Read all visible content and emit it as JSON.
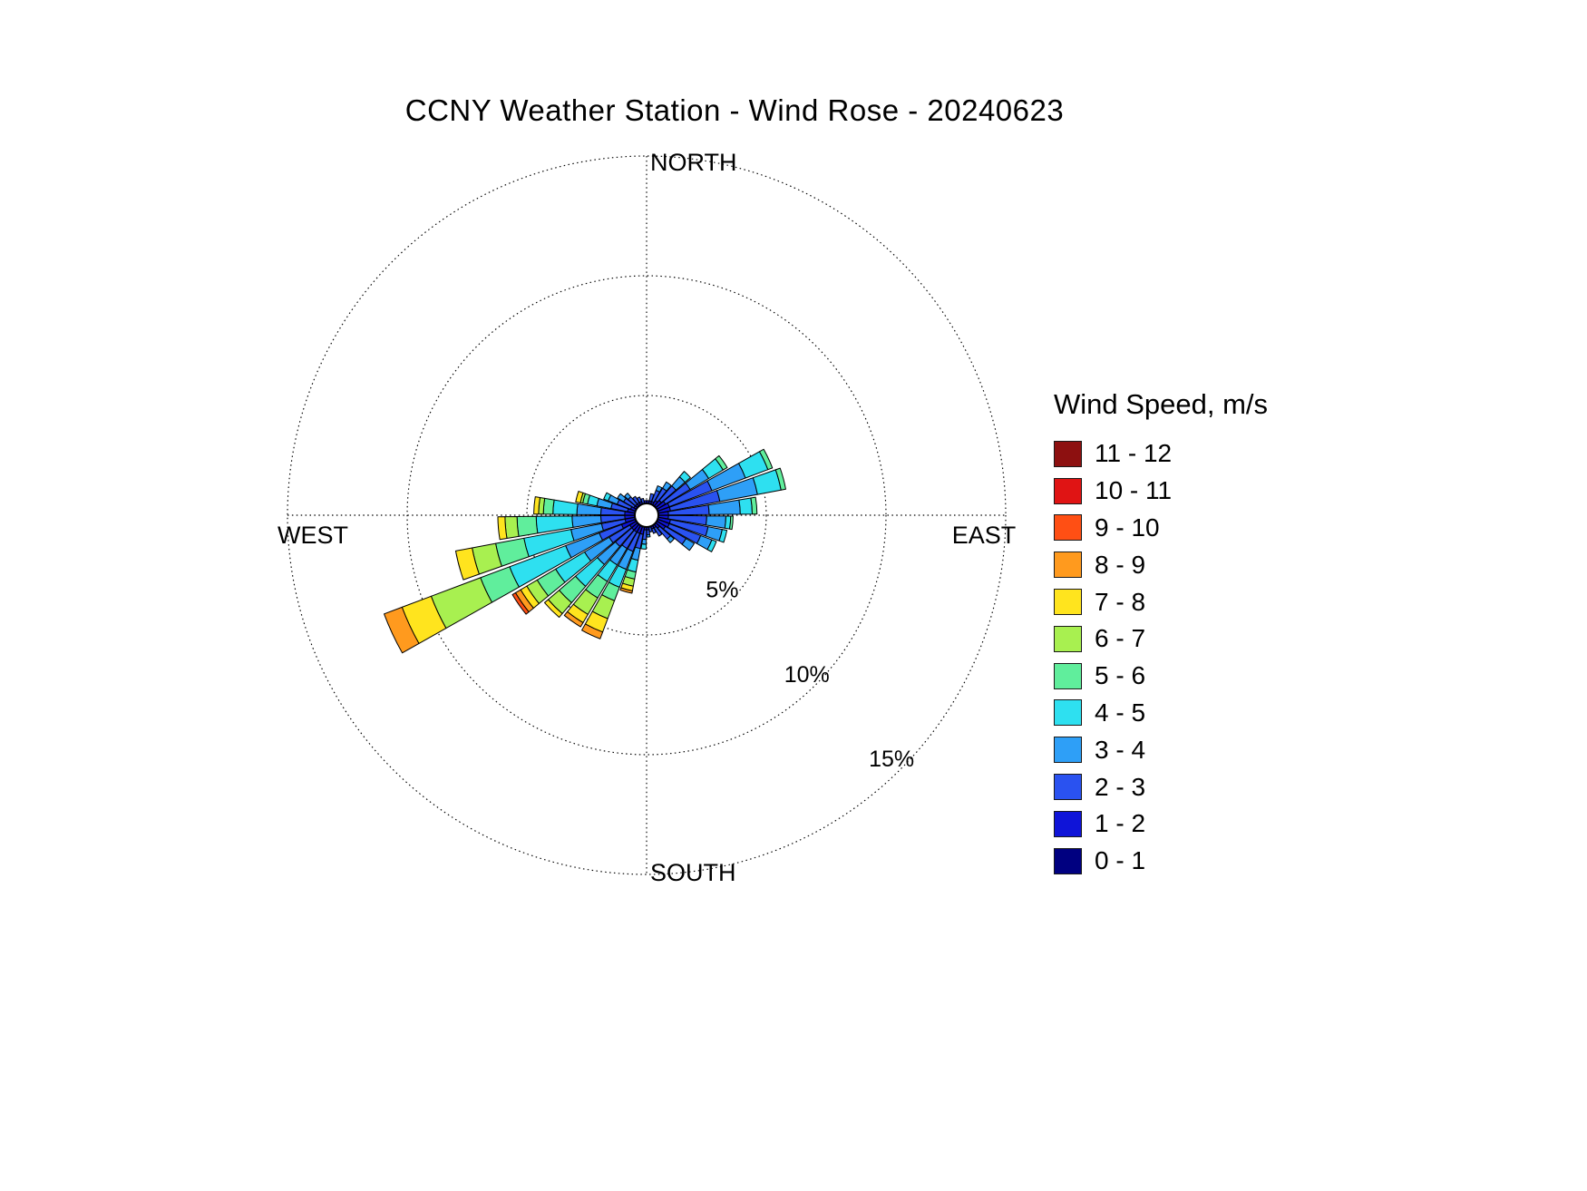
{
  "title": "CCNY Weather Station - Wind Rose - 20240623",
  "legend": {
    "title": "Wind Speed, m/s"
  },
  "chart_data": {
    "type": "windrose",
    "title": "CCNY Weather Station - Wind Rose - 20240623",
    "values_unit": "percent frequency of wind direction",
    "direction_labels": [
      "NORTH",
      "EAST",
      "SOUTH",
      "WEST"
    ],
    "ring_labels": [
      "5%",
      "10%",
      "15%"
    ],
    "rings_pct": [
      5,
      10,
      15
    ],
    "r_axis_max_pct": 15,
    "sector_width_deg": 10,
    "legend_title": "Wind Speed, m/s",
    "speed_bins": [
      {
        "label": "0 - 1",
        "color": "#000080"
      },
      {
        "label": "1 - 2",
        "color": "#0f14d8"
      },
      {
        "label": "2 - 3",
        "color": "#2a52f0"
      },
      {
        "label": "3 - 4",
        "color": "#2e9ff7"
      },
      {
        "label": "4 - 5",
        "color": "#2ee0f0"
      },
      {
        "label": "5 - 6",
        "color": "#60ee9c"
      },
      {
        "label": "6 - 7",
        "color": "#a8f050"
      },
      {
        "label": "7 - 8",
        "color": "#ffe41e"
      },
      {
        "label": "8 - 9",
        "color": "#ff9a1e"
      },
      {
        "label": "9 - 10",
        "color": "#ff4f14"
      },
      {
        "label": "10 - 11",
        "color": "#e01414"
      },
      {
        "label": "11 - 12",
        "color": "#8d1010"
      }
    ],
    "sectors": [
      {
        "dir_deg": 5,
        "freq_pct_by_bin": [
          0.2,
          0.3,
          0,
          0,
          0,
          0,
          0,
          0,
          0,
          0,
          0,
          0
        ]
      },
      {
        "dir_deg": 15,
        "freq_pct_by_bin": [
          0.2,
          0.3,
          0.3,
          0,
          0,
          0,
          0,
          0,
          0,
          0,
          0,
          0
        ]
      },
      {
        "dir_deg": 25,
        "freq_pct_by_bin": [
          0.2,
          0.3,
          0.5,
          0.2,
          0,
          0,
          0,
          0,
          0,
          0,
          0,
          0
        ]
      },
      {
        "dir_deg": 35,
        "freq_pct_by_bin": [
          0.2,
          0.4,
          0.6,
          0.3,
          0,
          0,
          0,
          0,
          0,
          0,
          0,
          0
        ]
      },
      {
        "dir_deg": 45,
        "freq_pct_by_bin": [
          0.3,
          0.4,
          0.8,
          0.5,
          0.3,
          0,
          0,
          0,
          0,
          0,
          0,
          0
        ]
      },
      {
        "dir_deg": 55,
        "freq_pct_by_bin": [
          0.3,
          0.5,
          1.2,
          0.9,
          0.7,
          0.2,
          0,
          0,
          0,
          0,
          0,
          0
        ]
      },
      {
        "dir_deg": 65,
        "freq_pct_by_bin": [
          0.3,
          0.6,
          1.9,
          1.5,
          1.0,
          0.2,
          0,
          0,
          0,
          0,
          0,
          0
        ]
      },
      {
        "dir_deg": 75,
        "freq_pct_by_bin": [
          0.3,
          0.6,
          2.1,
          1.6,
          1.0,
          0.2,
          0,
          0,
          0,
          0,
          0,
          0
        ]
      },
      {
        "dir_deg": 85,
        "freq_pct_by_bin": [
          0.3,
          0.5,
          1.7,
          1.3,
          0.5,
          0.2,
          0,
          0,
          0,
          0,
          0,
          0
        ]
      },
      {
        "dir_deg": 95,
        "freq_pct_by_bin": [
          0.3,
          0.5,
          1.6,
          0.8,
          0.2,
          0.1,
          0,
          0,
          0,
          0,
          0,
          0
        ]
      },
      {
        "dir_deg": 105,
        "freq_pct_by_bin": [
          0.3,
          0.6,
          1.6,
          0.6,
          0.2,
          0,
          0,
          0,
          0,
          0,
          0,
          0
        ]
      },
      {
        "dir_deg": 115,
        "freq_pct_by_bin": [
          0.3,
          0.6,
          1.4,
          0.5,
          0.2,
          0,
          0,
          0,
          0,
          0,
          0,
          0
        ]
      },
      {
        "dir_deg": 125,
        "freq_pct_by_bin": [
          0.3,
          0.5,
          1.0,
          0.4,
          0,
          0,
          0,
          0,
          0,
          0,
          0,
          0
        ]
      },
      {
        "dir_deg": 135,
        "freq_pct_by_bin": [
          0.2,
          0.4,
          0.6,
          0.2,
          0,
          0,
          0,
          0,
          0,
          0,
          0,
          0
        ]
      },
      {
        "dir_deg": 145,
        "freq_pct_by_bin": [
          0.2,
          0.3,
          0.4,
          0,
          0,
          0,
          0,
          0,
          0,
          0,
          0,
          0
        ]
      },
      {
        "dir_deg": 155,
        "freq_pct_by_bin": [
          0.2,
          0.3,
          0.2,
          0,
          0,
          0,
          0,
          0,
          0,
          0,
          0,
          0
        ]
      },
      {
        "dir_deg": 165,
        "freq_pct_by_bin": [
          0.2,
          0.2,
          0.2,
          0,
          0,
          0,
          0,
          0,
          0,
          0,
          0,
          0
        ]
      },
      {
        "dir_deg": 175,
        "freq_pct_by_bin": [
          0.2,
          0.3,
          0.2,
          0.1,
          0,
          0,
          0,
          0,
          0,
          0,
          0,
          0
        ]
      },
      {
        "dir_deg": 185,
        "freq_pct_by_bin": [
          0.2,
          0.3,
          0.4,
          0.2,
          0.2,
          0,
          0,
          0,
          0,
          0,
          0,
          0
        ]
      },
      {
        "dir_deg": 195,
        "freq_pct_by_bin": [
          0.3,
          0.4,
          0.6,
          0.5,
          0.5,
          0.3,
          0.3,
          0.2,
          0.1,
          0,
          0,
          0
        ]
      },
      {
        "dir_deg": 205,
        "freq_pct_by_bin": [
          0.3,
          0.4,
          0.8,
          0.8,
          0.8,
          0.6,
          0.8,
          0.6,
          0.3,
          0,
          0,
          0
        ]
      },
      {
        "dir_deg": 215,
        "freq_pct_by_bin": [
          0.3,
          0.4,
          0.8,
          0.8,
          0.8,
          0.8,
          0.8,
          0.4,
          0.2,
          0,
          0,
          0
        ]
      },
      {
        "dir_deg": 225,
        "freq_pct_by_bin": [
          0.3,
          0.4,
          0.9,
          1.0,
          1.2,
          0.9,
          0.6,
          0.2,
          0,
          0,
          0,
          0
        ]
      },
      {
        "dir_deg": 235,
        "freq_pct_by_bin": [
          0.3,
          0.4,
          1.0,
          1.2,
          1.4,
          0.9,
          0.5,
          0.3,
          0.25,
          0.15,
          0,
          0
        ]
      },
      {
        "dir_deg": 245,
        "freq_pct_by_bin": [
          0.4,
          0.6,
          1.0,
          1.5,
          2.5,
          1.3,
          2.2,
          1.3,
          0.8,
          0,
          0,
          0
        ]
      },
      {
        "dir_deg": 255,
        "freq_pct_by_bin": [
          0.3,
          0.5,
          1.0,
          1.3,
          2.0,
          1.2,
          1.0,
          0.7,
          0,
          0,
          0,
          0
        ]
      },
      {
        "dir_deg": 265,
        "freq_pct_by_bin": [
          0.3,
          0.5,
          1.0,
          1.2,
          1.5,
          0.8,
          0.5,
          0.3,
          0,
          0,
          0,
          0
        ]
      },
      {
        "dir_deg": 275,
        "freq_pct_by_bin": [
          0.3,
          0.5,
          1.0,
          1.0,
          1.0,
          0.4,
          0.2,
          0.2,
          0,
          0,
          0,
          0
        ]
      },
      {
        "dir_deg": 285,
        "freq_pct_by_bin": [
          0.3,
          0.4,
          0.7,
          0.6,
          0.4,
          0.2,
          0.1,
          0.2,
          0,
          0,
          0,
          0
        ]
      },
      {
        "dir_deg": 295,
        "freq_pct_by_bin": [
          0.2,
          0.4,
          0.6,
          0.4,
          0.2,
          0,
          0,
          0,
          0,
          0,
          0,
          0
        ]
      },
      {
        "dir_deg": 305,
        "freq_pct_by_bin": [
          0.2,
          0.3,
          0.5,
          0.3,
          0,
          0,
          0,
          0,
          0,
          0,
          0,
          0
        ]
      },
      {
        "dir_deg": 315,
        "freq_pct_by_bin": [
          0.2,
          0.3,
          0.4,
          0.2,
          0,
          0,
          0,
          0,
          0,
          0,
          0,
          0
        ]
      },
      {
        "dir_deg": 325,
        "freq_pct_by_bin": [
          0.2,
          0.3,
          0.3,
          0,
          0,
          0,
          0,
          0,
          0,
          0,
          0,
          0
        ]
      },
      {
        "dir_deg": 335,
        "freq_pct_by_bin": [
          0.2,
          0.3,
          0.2,
          0,
          0,
          0,
          0,
          0,
          0,
          0,
          0,
          0
        ]
      },
      {
        "dir_deg": 345,
        "freq_pct_by_bin": [
          0.2,
          0.2,
          0.2,
          0,
          0,
          0,
          0,
          0,
          0,
          0,
          0,
          0
        ]
      },
      {
        "dir_deg": 355,
        "freq_pct_by_bin": [
          0.2,
          0.3,
          0,
          0,
          0,
          0,
          0,
          0,
          0,
          0,
          0,
          0
        ]
      }
    ],
    "calm_marker": "white circle at center"
  }
}
